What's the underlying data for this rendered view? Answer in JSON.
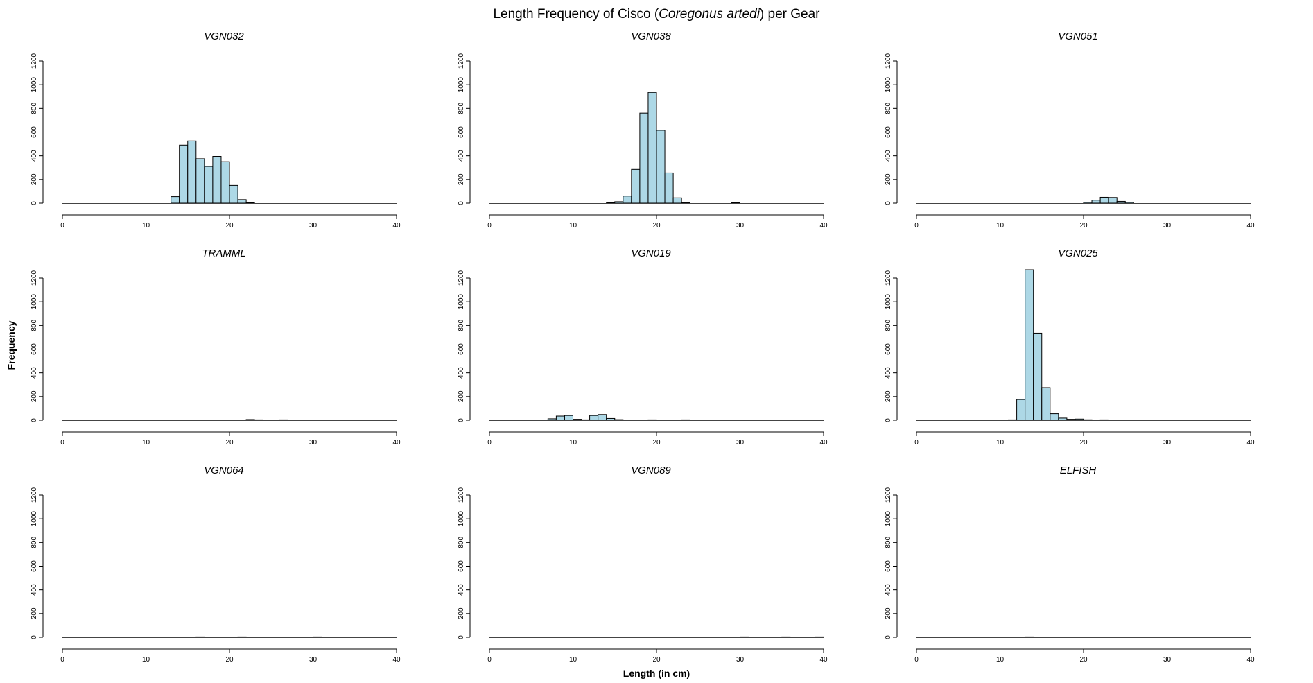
{
  "title": {
    "prefix": "Length Frequency of Cisco (",
    "italic": "Coregonus artedi",
    "suffix": ") per Gear"
  },
  "chart_data": {
    "type": "bar",
    "layout": "3x3 grid",
    "title": "Length Frequency of Cisco (Coregonus artedi) per Gear",
    "xlabel": "Length (in cm)",
    "ylabel": "Frequency",
    "xlim": [
      0,
      40
    ],
    "ylim": [
      0,
      1200
    ],
    "x_ticks": [
      0,
      10,
      20,
      30,
      40
    ],
    "y_ticks": [
      0,
      200,
      400,
      600,
      800,
      1000,
      1200
    ],
    "bin_width": 1,
    "grid": false,
    "bar_color": "#add8e6",
    "panels": [
      {
        "name": "VGN032",
        "bins": [
          {
            "x": 13,
            "y": 55
          },
          {
            "x": 14,
            "y": 490
          },
          {
            "x": 15,
            "y": 525
          },
          {
            "x": 16,
            "y": 375
          },
          {
            "x": 17,
            "y": 310
          },
          {
            "x": 18,
            "y": 395
          },
          {
            "x": 19,
            "y": 350
          },
          {
            "x": 20,
            "y": 150
          },
          {
            "x": 21,
            "y": 30
          },
          {
            "x": 22,
            "y": 4
          }
        ]
      },
      {
        "name": "VGN038",
        "bins": [
          {
            "x": 14,
            "y": 3
          },
          {
            "x": 15,
            "y": 12
          },
          {
            "x": 16,
            "y": 60
          },
          {
            "x": 17,
            "y": 285
          },
          {
            "x": 18,
            "y": 760
          },
          {
            "x": 19,
            "y": 935
          },
          {
            "x": 20,
            "y": 615
          },
          {
            "x": 21,
            "y": 255
          },
          {
            "x": 22,
            "y": 45
          },
          {
            "x": 23,
            "y": 6
          },
          {
            "x": 29,
            "y": 3
          }
        ]
      },
      {
        "name": "VGN051",
        "bins": [
          {
            "x": 20,
            "y": 8
          },
          {
            "x": 21,
            "y": 25
          },
          {
            "x": 22,
            "y": 50
          },
          {
            "x": 23,
            "y": 48
          },
          {
            "x": 24,
            "y": 15
          },
          {
            "x": 25,
            "y": 8
          }
        ]
      },
      {
        "name": "TRAMML",
        "bins": [
          {
            "x": 22,
            "y": 6
          },
          {
            "x": 23,
            "y": 3
          },
          {
            "x": 26,
            "y": 2
          }
        ]
      },
      {
        "name": "VGN019",
        "bins": [
          {
            "x": 7,
            "y": 12
          },
          {
            "x": 8,
            "y": 35
          },
          {
            "x": 9,
            "y": 40
          },
          {
            "x": 10,
            "y": 8
          },
          {
            "x": 11,
            "y": 3
          },
          {
            "x": 12,
            "y": 40
          },
          {
            "x": 13,
            "y": 48
          },
          {
            "x": 14,
            "y": 15
          },
          {
            "x": 15,
            "y": 5
          },
          {
            "x": 19,
            "y": 2
          },
          {
            "x": 23,
            "y": 2
          }
        ]
      },
      {
        "name": "VGN025",
        "bins": [
          {
            "x": 11,
            "y": 3
          },
          {
            "x": 12,
            "y": 175
          },
          {
            "x": 13,
            "y": 1270
          },
          {
            "x": 14,
            "y": 735
          },
          {
            "x": 15,
            "y": 275
          },
          {
            "x": 16,
            "y": 55
          },
          {
            "x": 17,
            "y": 18
          },
          {
            "x": 18,
            "y": 8
          },
          {
            "x": 19,
            "y": 10
          },
          {
            "x": 20,
            "y": 4
          },
          {
            "x": 22,
            "y": 3
          }
        ]
      },
      {
        "name": "VGN064",
        "bins": [
          {
            "x": 16,
            "y": 1
          },
          {
            "x": 21,
            "y": 1
          },
          {
            "x": 30,
            "y": 1
          }
        ]
      },
      {
        "name": "VGN089",
        "bins": [
          {
            "x": 30,
            "y": 1
          },
          {
            "x": 35,
            "y": 1
          },
          {
            "x": 39,
            "y": 1
          }
        ]
      },
      {
        "name": "ELFISH",
        "bins": [
          {
            "x": 13,
            "y": 1
          }
        ]
      }
    ]
  }
}
